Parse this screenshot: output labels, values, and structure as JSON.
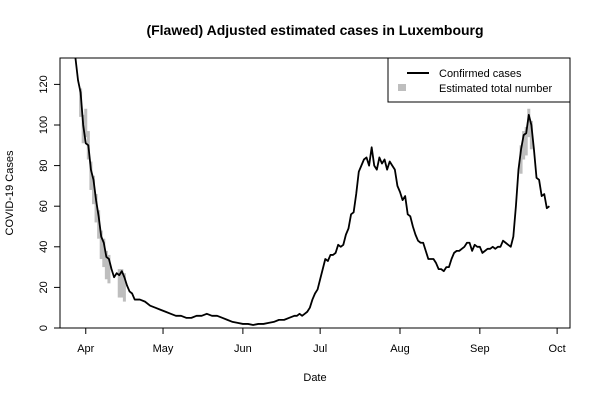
{
  "chart_data": {
    "type": "line",
    "title": "(Flawed) Adjusted estimated cases in Luxembourg",
    "xlabel": "Date",
    "ylabel": "COVID-19 Cases",
    "x_ticks": [
      {
        "label": "Apr",
        "date": "2020-04-01"
      },
      {
        "label": "May",
        "date": "2020-05-01"
      },
      {
        "label": "Jun",
        "date": "2020-06-01"
      },
      {
        "label": "Jul",
        "date": "2020-07-01"
      },
      {
        "label": "Aug",
        "date": "2020-08-01"
      },
      {
        "label": "Sep",
        "date": "2020-09-01"
      },
      {
        "label": "Oct",
        "date": "2020-10-01"
      }
    ],
    "xlim": [
      "2020-03-22",
      "2020-10-06"
    ],
    "y_ticks": [
      0,
      20,
      40,
      60,
      80,
      100,
      120
    ],
    "ylim": [
      0,
      133
    ],
    "legend": {
      "position": "top-right",
      "entries": [
        {
          "label": "Confirmed cases",
          "style": "line",
          "color": "#000000"
        },
        {
          "label": "Estimated total number",
          "style": "bar",
          "color": "#bebebe"
        }
      ]
    },
    "series": [
      {
        "name": "Confirmed cases",
        "color": "#000000",
        "points": [
          [
            "2020-03-28",
            133
          ],
          [
            "2020-03-29",
            122
          ],
          [
            "2020-03-30",
            116
          ],
          [
            "2020-03-31",
            100
          ],
          [
            "2020-04-01",
            91
          ],
          [
            "2020-04-02",
            90
          ],
          [
            "2020-04-03",
            78
          ],
          [
            "2020-04-04",
            73
          ],
          [
            "2020-04-05",
            63
          ],
          [
            "2020-04-06",
            55
          ],
          [
            "2020-04-07",
            45
          ],
          [
            "2020-04-08",
            42
          ],
          [
            "2020-04-09",
            35
          ],
          [
            "2020-04-10",
            34
          ],
          [
            "2020-04-11",
            29
          ],
          [
            "2020-04-12",
            25
          ],
          [
            "2020-04-13",
            27
          ],
          [
            "2020-04-14",
            26
          ],
          [
            "2020-04-15",
            28
          ],
          [
            "2020-04-16",
            25
          ],
          [
            "2020-04-17",
            21
          ],
          [
            "2020-04-18",
            18
          ],
          [
            "2020-04-19",
            17
          ],
          [
            "2020-04-20",
            14
          ],
          [
            "2020-04-22",
            14
          ],
          [
            "2020-04-24",
            13
          ],
          [
            "2020-04-26",
            11
          ],
          [
            "2020-04-28",
            10
          ],
          [
            "2020-04-30",
            9
          ],
          [
            "2020-05-02",
            8
          ],
          [
            "2020-05-04",
            7
          ],
          [
            "2020-05-06",
            6
          ],
          [
            "2020-05-08",
            6
          ],
          [
            "2020-05-10",
            5
          ],
          [
            "2020-05-12",
            5
          ],
          [
            "2020-05-14",
            6
          ],
          [
            "2020-05-16",
            6
          ],
          [
            "2020-05-18",
            7
          ],
          [
            "2020-05-20",
            6
          ],
          [
            "2020-05-22",
            6
          ],
          [
            "2020-05-24",
            5
          ],
          [
            "2020-05-26",
            4
          ],
          [
            "2020-05-28",
            3
          ],
          [
            "2020-05-30",
            2.5
          ],
          [
            "2020-06-01",
            2
          ],
          [
            "2020-06-03",
            2
          ],
          [
            "2020-06-05",
            1.5
          ],
          [
            "2020-06-07",
            2
          ],
          [
            "2020-06-09",
            2
          ],
          [
            "2020-06-11",
            2.5
          ],
          [
            "2020-06-13",
            3
          ],
          [
            "2020-06-15",
            4
          ],
          [
            "2020-06-17",
            4
          ],
          [
            "2020-06-19",
            5
          ],
          [
            "2020-06-21",
            6
          ],
          [
            "2020-06-22",
            6
          ],
          [
            "2020-06-23",
            7
          ],
          [
            "2020-06-24",
            6
          ],
          [
            "2020-06-25",
            7
          ],
          [
            "2020-06-26",
            8
          ],
          [
            "2020-06-27",
            10
          ],
          [
            "2020-06-28",
            14
          ],
          [
            "2020-06-29",
            17
          ],
          [
            "2020-06-30",
            19
          ],
          [
            "2020-07-01",
            24
          ],
          [
            "2020-07-02",
            29
          ],
          [
            "2020-07-03",
            34
          ],
          [
            "2020-07-04",
            33
          ],
          [
            "2020-07-05",
            36
          ],
          [
            "2020-07-06",
            36
          ],
          [
            "2020-07-07",
            37
          ],
          [
            "2020-07-08",
            41
          ],
          [
            "2020-07-09",
            40
          ],
          [
            "2020-07-10",
            41
          ],
          [
            "2020-07-11",
            46
          ],
          [
            "2020-07-12",
            49
          ],
          [
            "2020-07-13",
            56
          ],
          [
            "2020-07-14",
            57
          ],
          [
            "2020-07-15",
            66
          ],
          [
            "2020-07-16",
            77
          ],
          [
            "2020-07-17",
            80
          ],
          [
            "2020-07-18",
            83
          ],
          [
            "2020-07-19",
            84
          ],
          [
            "2020-07-20",
            80
          ],
          [
            "2020-07-21",
            89
          ],
          [
            "2020-07-22",
            80
          ],
          [
            "2020-07-23",
            78
          ],
          [
            "2020-07-24",
            84
          ],
          [
            "2020-07-25",
            81
          ],
          [
            "2020-07-26",
            83
          ],
          [
            "2020-07-27",
            78
          ],
          [
            "2020-07-28",
            82
          ],
          [
            "2020-07-29",
            80
          ],
          [
            "2020-07-30",
            78
          ],
          [
            "2020-07-31",
            70
          ],
          [
            "2020-08-01",
            67
          ],
          [
            "2020-08-02",
            63
          ],
          [
            "2020-08-03",
            65
          ],
          [
            "2020-08-04",
            56
          ],
          [
            "2020-08-05",
            55
          ],
          [
            "2020-08-06",
            50
          ],
          [
            "2020-08-07",
            46
          ],
          [
            "2020-08-08",
            43
          ],
          [
            "2020-08-09",
            42
          ],
          [
            "2020-08-10",
            42
          ],
          [
            "2020-08-11",
            38
          ],
          [
            "2020-08-12",
            34
          ],
          [
            "2020-08-13",
            34
          ],
          [
            "2020-08-14",
            34
          ],
          [
            "2020-08-15",
            32
          ],
          [
            "2020-08-16",
            29
          ],
          [
            "2020-08-17",
            29
          ],
          [
            "2020-08-18",
            28
          ],
          [
            "2020-08-19",
            30
          ],
          [
            "2020-08-20",
            30
          ],
          [
            "2020-08-21",
            34
          ],
          [
            "2020-08-22",
            37
          ],
          [
            "2020-08-23",
            38
          ],
          [
            "2020-08-24",
            38
          ],
          [
            "2020-08-25",
            39
          ],
          [
            "2020-08-26",
            40
          ],
          [
            "2020-08-27",
            42
          ],
          [
            "2020-08-28",
            42
          ],
          [
            "2020-08-29",
            38
          ],
          [
            "2020-08-30",
            41
          ],
          [
            "2020-08-31",
            40
          ],
          [
            "2020-09-01",
            40
          ],
          [
            "2020-09-02",
            37
          ],
          [
            "2020-09-03",
            38
          ],
          [
            "2020-09-04",
            39
          ],
          [
            "2020-09-05",
            39
          ],
          [
            "2020-09-06",
            40
          ],
          [
            "2020-09-07",
            39
          ],
          [
            "2020-09-08",
            40
          ],
          [
            "2020-09-09",
            40
          ],
          [
            "2020-09-10",
            43
          ],
          [
            "2020-09-11",
            42
          ],
          [
            "2020-09-12",
            41
          ],
          [
            "2020-09-13",
            40
          ],
          [
            "2020-09-14",
            45
          ],
          [
            "2020-09-15",
            60
          ],
          [
            "2020-09-16",
            78
          ],
          [
            "2020-09-17",
            88
          ],
          [
            "2020-09-18",
            95
          ],
          [
            "2020-09-19",
            96
          ],
          [
            "2020-09-20",
            105
          ],
          [
            "2020-09-21",
            100
          ],
          [
            "2020-09-22",
            88
          ],
          [
            "2020-09-23",
            74
          ],
          [
            "2020-09-24",
            73
          ],
          [
            "2020-09-25",
            65
          ],
          [
            "2020-09-26",
            66
          ],
          [
            "2020-09-27",
            59
          ],
          [
            "2020-09-28",
            60
          ]
        ]
      },
      {
        "name": "Estimated total number",
        "color": "#bebebe",
        "points": [
          [
            "2020-03-30",
            118
          ],
          [
            "2020-03-31",
            105
          ],
          [
            "2020-04-01",
            108
          ],
          [
            "2020-04-02",
            97
          ],
          [
            "2020-04-03",
            82
          ],
          [
            "2020-04-04",
            75
          ],
          [
            "2020-04-05",
            66
          ],
          [
            "2020-04-06",
            58
          ],
          [
            "2020-04-07",
            48
          ],
          [
            "2020-04-08",
            44
          ],
          [
            "2020-04-09",
            38
          ],
          [
            "2020-04-10",
            36
          ],
          [
            "2020-04-14",
            29
          ],
          [
            "2020-04-15",
            29
          ],
          [
            "2020-04-16",
            27
          ],
          [
            "2020-09-17",
            90
          ],
          [
            "2020-09-18",
            97
          ],
          [
            "2020-09-19",
            99
          ],
          [
            "2020-09-20",
            108
          ],
          [
            "2020-09-21",
            102
          ]
        ]
      }
    ]
  }
}
